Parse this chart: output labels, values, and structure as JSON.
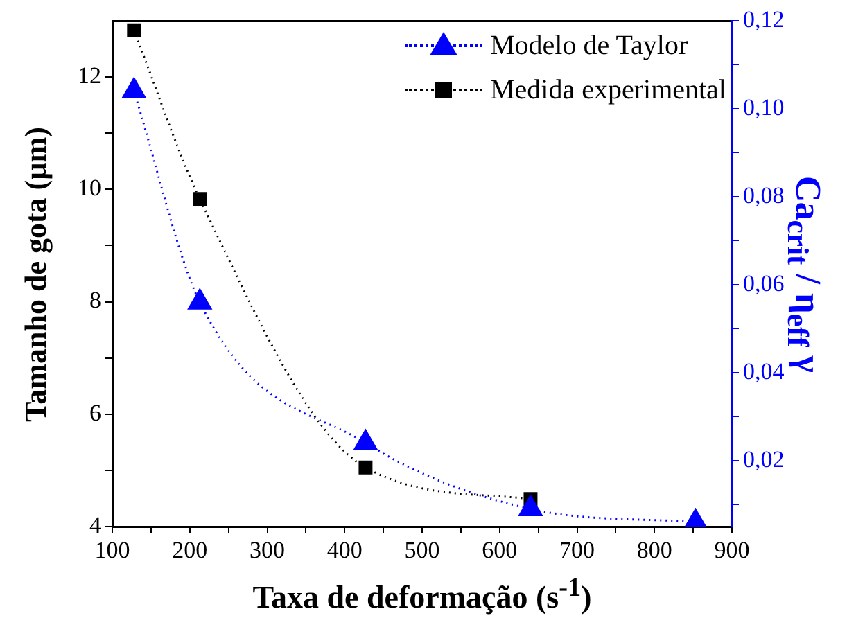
{
  "chart_data": {
    "type": "line",
    "xlabel": "Taxa de deformação (s$^{-1}$)",
    "ylabel": "Tamanho de gota (µm)",
    "y2label": "Ca$_{crit}$ / η$_{eff}$ γ",
    "xlim": [
      100,
      900
    ],
    "xticks": [
      100,
      {
        "value": 150,
        "label": null
      },
      200,
      {
        "value": 250,
        "label": null
      },
      300,
      {
        "value": 350,
        "label": null
      },
      400,
      {
        "value": 450,
        "label": null
      },
      500,
      {
        "value": 550,
        "label": null
      },
      600,
      {
        "value": 650,
        "label": null
      },
      700,
      {
        "value": 750,
        "label": null
      },
      800,
      {
        "value": 850,
        "label": null
      },
      900
    ],
    "ylim": [
      4,
      13
    ],
    "yticks": [
      4,
      {
        "value": 5,
        "label": null
      },
      6,
      {
        "value": 7,
        "label": null
      },
      8,
      {
        "value": 9,
        "label": null
      },
      10,
      {
        "value": 11,
        "label": null
      },
      12
    ],
    "y2lim": [
      0.005,
      0.12
    ],
    "y2ticks": [
      {
        "value": 0.01,
        "label": null
      },
      {
        "value": 0.02,
        "label": "0,02"
      },
      {
        "value": 0.03,
        "label": null
      },
      {
        "value": 0.04,
        "label": "0,04"
      },
      {
        "value": 0.05,
        "label": null
      },
      {
        "value": 0.06,
        "label": "0,06"
      },
      {
        "value": 0.07,
        "label": null
      },
      {
        "value": 0.08,
        "label": "0,08"
      },
      {
        "value": 0.09,
        "label": null
      },
      {
        "value": 0.1,
        "label": "0,10"
      },
      {
        "value": 0.11,
        "label": null
      },
      {
        "value": 0.12,
        "label": "0,12"
      }
    ],
    "legend": "top right",
    "line_style": "dotted",
    "series": [
      {
        "name": "Modelo de Taylor",
        "color": "#0000ff",
        "axis": "y2",
        "marker": "triangle",
        "x": [
          128,
          213,
          427,
          640,
          853
        ],
        "values": [
          0.104,
          0.056,
          0.024,
          0.009,
          0.006
        ]
      },
      {
        "name": "Medida experimental",
        "color": "#000000",
        "marker": "square",
        "x": [
          128,
          213,
          427,
          640
        ],
        "values": [
          12.83,
          9.83,
          5.05,
          4.49
        ]
      }
    ]
  }
}
